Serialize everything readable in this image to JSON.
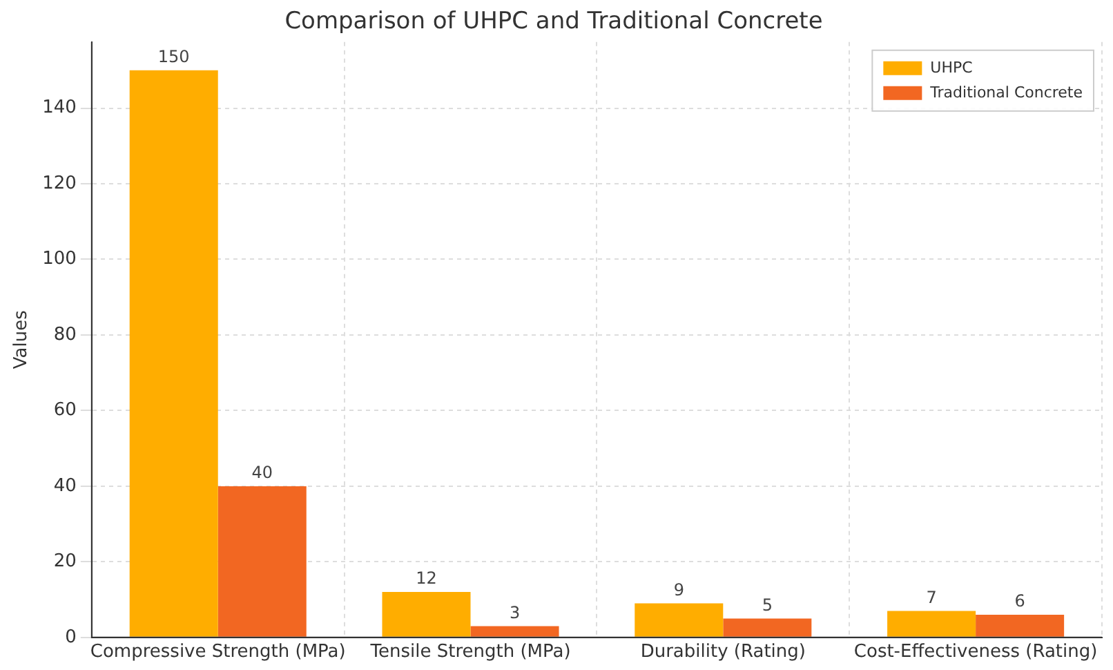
{
  "chart_data": {
    "type": "bar",
    "title": "Comparison of UHPC and Traditional Concrete",
    "ylabel": "Values",
    "categories": [
      "Compressive Strength (MPa)",
      "Tensile Strength (MPa)",
      "Durability (Rating)",
      "Cost-Effectiveness (Rating)"
    ],
    "series": [
      {
        "name": "UHPC",
        "color": "#ffad00",
        "values": [
          150,
          12,
          9,
          7
        ]
      },
      {
        "name": "Traditional Concrete",
        "color": "#f26722",
        "values": [
          40,
          3,
          5,
          6
        ]
      }
    ],
    "ylim": [
      0,
      157.5
    ],
    "yticks": [
      0,
      20,
      40,
      60,
      80,
      100,
      120,
      140
    ],
    "grid": true,
    "legend": "top right",
    "data_labels": true
  }
}
